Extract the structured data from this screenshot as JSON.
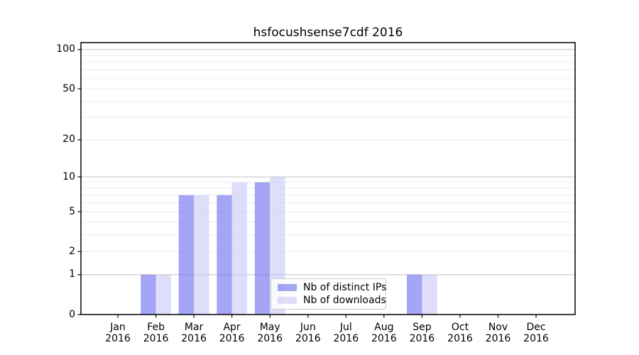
{
  "chart_data": {
    "type": "bar",
    "title": "hsfocushsense7cdf 2016",
    "categories": [
      "Jan",
      "Feb",
      "Mar",
      "Apr",
      "May",
      "Jun",
      "Jul",
      "Aug",
      "Sep",
      "Oct",
      "Nov",
      "Dec"
    ],
    "x_year_label": "2016",
    "series": [
      {
        "name": "Nb of distinct IPs",
        "color": "#6969f0",
        "opacity": 0.6,
        "values": [
          0,
          1,
          7,
          7,
          9,
          0,
          0,
          0,
          1,
          0,
          0,
          0
        ]
      },
      {
        "name": "Nb of downloads",
        "color": "#c8c8f6",
        "opacity": 0.6,
        "values": [
          0,
          1,
          7,
          9,
          10,
          0,
          0,
          0,
          1,
          0,
          0,
          0
        ]
      }
    ],
    "yticks": [
      0,
      1,
      2,
      5,
      10,
      20,
      50,
      100
    ],
    "ylim": [
      0,
      113
    ],
    "scale": "log1p",
    "grid": {
      "on": true,
      "major": [
        1,
        10,
        100
      ],
      "minor": [
        2,
        3,
        4,
        5,
        6,
        7,
        8,
        9,
        20,
        30,
        40,
        50,
        60,
        70,
        80,
        90
      ],
      "major_color": "#c0c0c0",
      "minor_color": "#ececec"
    },
    "frame_color": "#000000",
    "legend_position": "lower center-left"
  }
}
